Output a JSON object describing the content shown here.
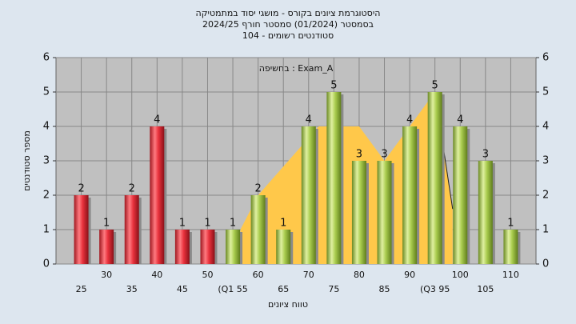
{
  "chart_data": {
    "type": "bar",
    "title": "היסטוגרמת ציונים בקורס - מושגי יסוד במתמטיקה",
    "subtitle": "בסמסטר  (01/2024)  סמסטר חורף 2024/25",
    "subtitle2": "סטודנטים רשומים - 104",
    "annotation": "Exam_A : בחשיפה",
    "ylabel": "מספר סטודנטים",
    "xlabel": "טווח ציונים",
    "x": [
      25,
      30,
      35,
      40,
      45,
      50,
      55,
      60,
      65,
      70,
      75,
      80,
      85,
      90,
      95,
      100,
      105,
      110
    ],
    "values": [
      2,
      1,
      2,
      4,
      1,
      1,
      1,
      2,
      1,
      4,
      5,
      3,
      3,
      4,
      5,
      4,
      3,
      1
    ],
    "colors": [
      "#e8313c",
      "#e8313c",
      "#e8313c",
      "#e8313c",
      "#e8313c",
      "#e8313c",
      "#a9cc4e",
      "#a9cc4e",
      "#a9cc4e",
      "#a9cc4e",
      "#a9cc4e",
      "#a9cc4e",
      "#a9cc4e",
      "#a9cc4e",
      "#a9cc4e",
      "#a9cc4e",
      "#a9cc4e",
      "#a9cc4e"
    ],
    "area": {
      "color": "#ffc84a",
      "x": [
        56.5,
        60,
        72,
        80,
        85,
        95,
        98.5
      ],
      "values": [
        1,
        2,
        4,
        4,
        3,
        5,
        1.6
      ]
    },
    "xlim": [
      20,
      115
    ],
    "xticks": [
      25,
      30,
      35,
      40,
      45,
      50,
      {
        "value": 55,
        "label": "(Q1 55"
      },
      60,
      65,
      70,
      75,
      80,
      85,
      90,
      {
        "value": 95,
        "label": "(Q3 95"
      },
      100,
      105,
      110
    ],
    "ylim": [
      0,
      6
    ],
    "yticks": [
      0,
      1,
      2,
      3,
      4,
      5,
      6
    ],
    "y2lim": [
      0,
      6
    ],
    "y2ticks": [
      0,
      1,
      2,
      3,
      4,
      5,
      6
    ],
    "grid": true
  }
}
